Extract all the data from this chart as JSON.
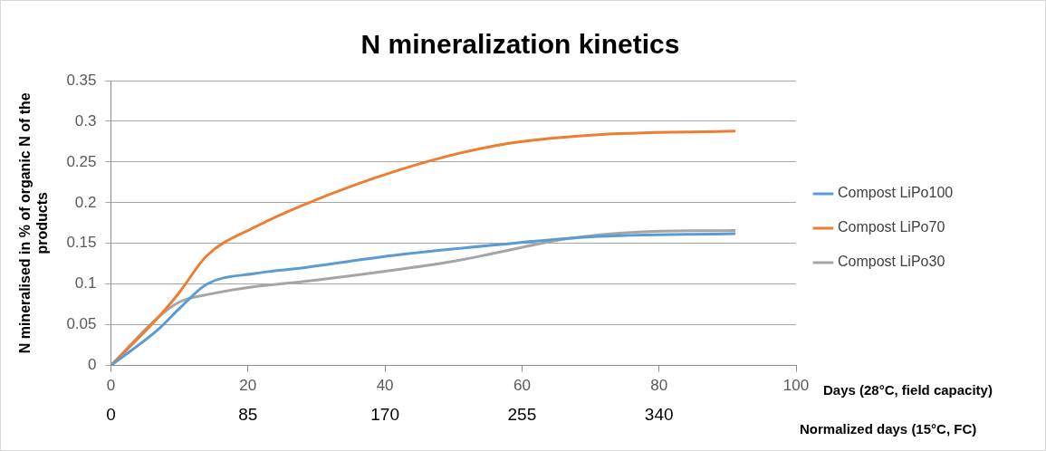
{
  "chart_data": {
    "type": "line",
    "title": "N mineralization kinetics",
    "ylabel": "N mineralised in % of organic N of the products",
    "xlabel": "Days (28°C, field capacity)",
    "x2label": "Normalized days (15°C, FC)",
    "xlim": [
      0,
      100
    ],
    "xticks": [
      0,
      20,
      40,
      60,
      80,
      100
    ],
    "x2lim": [
      0,
      425
    ],
    "x2ticks": [
      0,
      85,
      170,
      255,
      340
    ],
    "ylim": [
      0,
      0.35
    ],
    "yticks": [
      0,
      0.05,
      0.1,
      0.15,
      0.2,
      0.25,
      0.3,
      0.35
    ],
    "grid": "y",
    "legend": "right",
    "marker": "none",
    "line_style": "solid",
    "series": [
      {
        "name": "Compost LiPo100",
        "color": "#5b9bd5",
        "x": [
          0,
          7,
          10,
          14,
          21,
          28,
          42,
          56,
          70,
          91
        ],
        "values": [
          0,
          0.045,
          0.07,
          0.1,
          0.113,
          0.12,
          0.136,
          0.148,
          0.158,
          0.162
        ]
      },
      {
        "name": "Compost LiPo70",
        "color": "#ed7d31",
        "x": [
          0,
          7,
          10,
          14,
          21,
          28,
          42,
          56,
          70,
          91
        ],
        "values": [
          0,
          0.06,
          0.09,
          0.135,
          0.17,
          0.197,
          0.24,
          0.27,
          0.283,
          0.288
        ]
      },
      {
        "name": "Compost LiPo30",
        "color": "#a5a5a5",
        "x": [
          0,
          7,
          10,
          14,
          21,
          28,
          42,
          50,
          56,
          66,
          77,
          91
        ],
        "values": [
          0,
          0.06,
          0.078,
          0.087,
          0.097,
          0.103,
          0.118,
          0.128,
          0.138,
          0.155,
          0.164,
          0.166
        ]
      }
    ]
  }
}
